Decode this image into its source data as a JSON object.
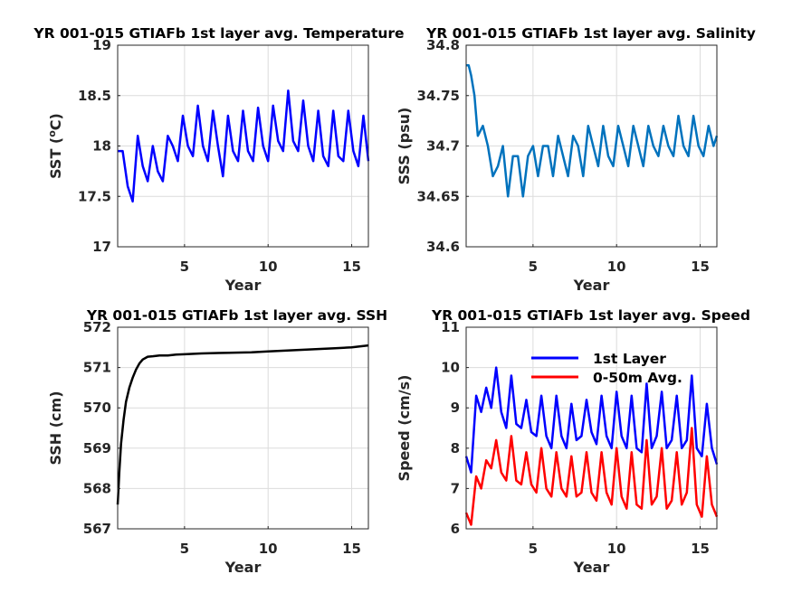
{
  "chart_data": [
    {
      "type": "line",
      "title": "YR 001-015 GTIAFb 1st layer avg. Temperature",
      "xlabel": "Year",
      "ylabel": "SST (",
      "ylabel_sup": "o",
      "ylabel_unit": "C)",
      "xlim": [
        1,
        16
      ],
      "ylim": [
        17,
        19
      ],
      "xticks": [
        5,
        10,
        15
      ],
      "yticks": [
        17,
        17.5,
        18,
        18.5,
        19
      ],
      "ytick_labels": [
        "17",
        "17.5",
        "18",
        "18.5",
        "19"
      ],
      "grid": true,
      "series": [
        {
          "color": "#0000ff",
          "x": [
            1.0,
            1.3,
            1.6,
            1.9,
            2.2,
            2.5,
            2.8,
            3.1,
            3.4,
            3.7,
            4.0,
            4.3,
            4.6,
            4.9,
            5.2,
            5.5,
            5.8,
            6.1,
            6.4,
            6.7,
            7.0,
            7.3,
            7.6,
            7.9,
            8.2,
            8.5,
            8.8,
            9.1,
            9.4,
            9.7,
            10.0,
            10.3,
            10.6,
            10.9,
            11.2,
            11.5,
            11.8,
            12.1,
            12.4,
            12.7,
            13.0,
            13.3,
            13.6,
            13.9,
            14.2,
            14.5,
            14.8,
            15.1,
            15.4,
            15.7,
            16.0
          ],
          "values": [
            17.95,
            17.95,
            17.6,
            17.45,
            18.1,
            17.8,
            17.65,
            18.0,
            17.75,
            17.65,
            18.1,
            18.0,
            17.85,
            18.3,
            18.0,
            17.9,
            18.4,
            18.0,
            17.85,
            18.35,
            18.0,
            17.7,
            18.3,
            17.95,
            17.85,
            18.35,
            17.95,
            17.85,
            18.38,
            18.0,
            17.85,
            18.4,
            18.05,
            17.95,
            18.55,
            18.05,
            17.95,
            18.45,
            18.0,
            17.85,
            18.35,
            17.9,
            17.8,
            18.35,
            17.9,
            17.85,
            18.35,
            17.95,
            17.8,
            18.3,
            17.85
          ]
        }
      ]
    },
    {
      "type": "line",
      "title": "YR 001-015 GTIAFb 1st layer avg. Salinity",
      "xlabel": "Year",
      "ylabel": "SSS (psu)",
      "xlim": [
        1,
        16
      ],
      "ylim": [
        34.6,
        34.8
      ],
      "xticks": [
        5,
        10,
        15
      ],
      "yticks": [
        34.6,
        34.65,
        34.7,
        34.75,
        34.8
      ],
      "ytick_labels": [
        "34.6",
        "34.65",
        "34.7",
        "34.75",
        "34.8"
      ],
      "grid": true,
      "series": [
        {
          "color": "#0072bd",
          "x": [
            1.0,
            1.15,
            1.3,
            1.5,
            1.7,
            2.0,
            2.3,
            2.6,
            2.9,
            3.2,
            3.5,
            3.8,
            4.1,
            4.4,
            4.7,
            5.0,
            5.3,
            5.6,
            5.9,
            6.2,
            6.5,
            6.8,
            7.1,
            7.4,
            7.7,
            8.0,
            8.3,
            8.6,
            8.9,
            9.2,
            9.5,
            9.8,
            10.1,
            10.4,
            10.7,
            11.0,
            11.3,
            11.6,
            11.9,
            12.2,
            12.5,
            12.8,
            13.1,
            13.4,
            13.7,
            14.0,
            14.3,
            14.6,
            14.9,
            15.2,
            15.5,
            15.8,
            16.0
          ],
          "values": [
            34.78,
            34.78,
            34.77,
            34.75,
            34.71,
            34.72,
            34.7,
            34.67,
            34.68,
            34.7,
            34.65,
            34.69,
            34.69,
            34.65,
            34.69,
            34.7,
            34.67,
            34.7,
            34.7,
            34.67,
            34.71,
            34.69,
            34.67,
            34.71,
            34.7,
            34.67,
            34.72,
            34.7,
            34.68,
            34.72,
            34.69,
            34.68,
            34.72,
            34.7,
            34.68,
            34.72,
            34.7,
            34.68,
            34.72,
            34.7,
            34.69,
            34.72,
            34.7,
            34.69,
            34.73,
            34.7,
            34.69,
            34.73,
            34.7,
            34.69,
            34.72,
            34.7,
            34.71
          ]
        }
      ]
    },
    {
      "type": "line",
      "title": "YR 001-015 GTIAFb 1st layer avg. SSH",
      "xlabel": "Year",
      "ylabel": "SSH (cm)",
      "xlim": [
        1,
        16
      ],
      "ylim": [
        567,
        572
      ],
      "xticks": [
        5,
        10,
        15
      ],
      "yticks": [
        567,
        568,
        569,
        570,
        571,
        572
      ],
      "ytick_labels": [
        "567",
        "568",
        "569",
        "570",
        "571",
        "572"
      ],
      "grid": true,
      "series": [
        {
          "color": "#000000",
          "x": [
            1.0,
            1.1,
            1.2,
            1.35,
            1.5,
            1.7,
            1.9,
            2.1,
            2.3,
            2.5,
            2.8,
            3.1,
            3.5,
            4.0,
            4.5,
            5.0,
            6.0,
            7.0,
            8.0,
            9.0,
            10.0,
            11.0,
            12.0,
            13.0,
            14.0,
            15.0,
            16.0
          ],
          "values": [
            567.6,
            568.4,
            569.1,
            569.7,
            570.15,
            570.5,
            570.75,
            570.95,
            571.1,
            571.2,
            571.27,
            571.28,
            571.3,
            571.3,
            571.32,
            571.33,
            571.35,
            571.36,
            571.37,
            571.38,
            571.4,
            571.42,
            571.44,
            571.46,
            571.48,
            571.5,
            571.55
          ]
        }
      ]
    },
    {
      "type": "line",
      "title": "YR 001-015 GTIAFb 1st layer avg. Speed",
      "xlabel": "Year",
      "ylabel": "Speed (cm/s)",
      "xlim": [
        1,
        16
      ],
      "ylim": [
        6,
        11
      ],
      "xticks": [
        5,
        10,
        15
      ],
      "yticks": [
        6,
        7,
        8,
        9,
        10,
        11
      ],
      "ytick_labels": [
        "6",
        "7",
        "8",
        "9",
        "10",
        "11"
      ],
      "grid": true,
      "legend": "top-center",
      "series": [
        {
          "name": "1st Layer",
          "color": "#0000ff",
          "x": [
            1.0,
            1.3,
            1.6,
            1.9,
            2.2,
            2.5,
            2.8,
            3.1,
            3.4,
            3.7,
            4.0,
            4.3,
            4.6,
            4.9,
            5.2,
            5.5,
            5.8,
            6.1,
            6.4,
            6.7,
            7.0,
            7.3,
            7.6,
            7.9,
            8.2,
            8.5,
            8.8,
            9.1,
            9.4,
            9.7,
            10.0,
            10.3,
            10.6,
            10.9,
            11.2,
            11.5,
            11.8,
            12.1,
            12.4,
            12.7,
            13.0,
            13.3,
            13.6,
            13.9,
            14.2,
            14.5,
            14.8,
            15.1,
            15.4,
            15.7,
            16.0
          ],
          "values": [
            7.8,
            7.4,
            9.3,
            8.9,
            9.5,
            9.0,
            10.0,
            8.9,
            8.5,
            9.8,
            8.6,
            8.5,
            9.2,
            8.4,
            8.3,
            9.3,
            8.3,
            8.0,
            9.3,
            8.3,
            8.0,
            9.1,
            8.2,
            8.3,
            9.2,
            8.4,
            8.1,
            9.3,
            8.3,
            8.0,
            9.4,
            8.3,
            8.0,
            9.3,
            8.0,
            7.9,
            9.6,
            8.0,
            8.3,
            9.4,
            8.0,
            8.2,
            9.3,
            8.0,
            8.2,
            9.8,
            8.0,
            7.8,
            9.1,
            8.0,
            7.6
          ]
        },
        {
          "name": "0-50m Avg.",
          "color": "#ff0000",
          "x": [
            1.0,
            1.3,
            1.6,
            1.9,
            2.2,
            2.5,
            2.8,
            3.1,
            3.4,
            3.7,
            4.0,
            4.3,
            4.6,
            4.9,
            5.2,
            5.5,
            5.8,
            6.1,
            6.4,
            6.7,
            7.0,
            7.3,
            7.6,
            7.9,
            8.2,
            8.5,
            8.8,
            9.1,
            9.4,
            9.7,
            10.0,
            10.3,
            10.6,
            10.9,
            11.2,
            11.5,
            11.8,
            12.1,
            12.4,
            12.7,
            13.0,
            13.3,
            13.6,
            13.9,
            14.2,
            14.5,
            14.8,
            15.1,
            15.4,
            15.7,
            16.0
          ],
          "values": [
            6.4,
            6.1,
            7.3,
            7.0,
            7.7,
            7.5,
            8.2,
            7.4,
            7.2,
            8.3,
            7.2,
            7.1,
            7.9,
            7.1,
            6.9,
            8.0,
            7.0,
            6.8,
            7.9,
            7.0,
            6.8,
            7.8,
            6.8,
            6.9,
            7.9,
            6.9,
            6.7,
            7.9,
            6.9,
            6.6,
            8.0,
            6.8,
            6.5,
            7.9,
            6.6,
            6.5,
            8.2,
            6.6,
            6.8,
            8.0,
            6.5,
            6.7,
            7.9,
            6.6,
            6.9,
            8.5,
            6.6,
            6.3,
            7.8,
            6.6,
            6.3
          ]
        }
      ]
    }
  ]
}
